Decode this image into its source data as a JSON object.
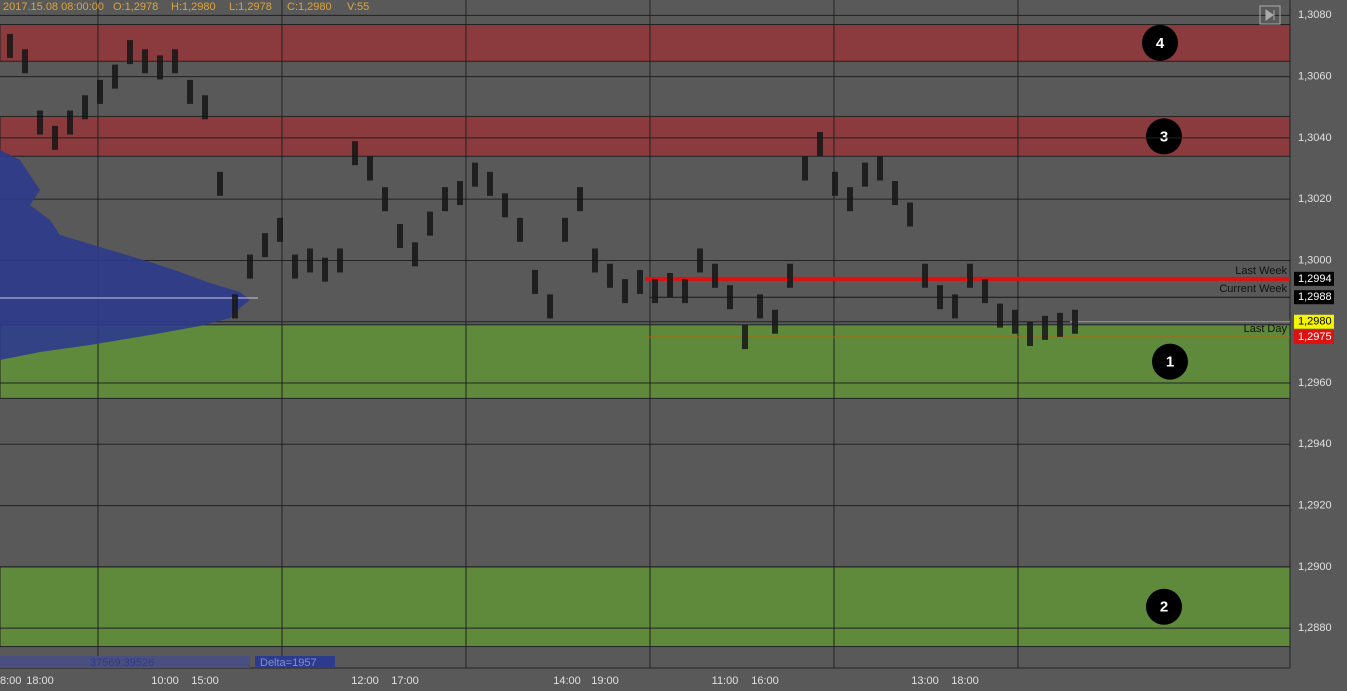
{
  "chart_data": {
    "type": "tpo",
    "header": [
      "2017.15.08 08:00:00",
      "O:1,2978",
      "H:1,2980",
      "L:1,2978",
      "C:1,2980",
      "V:55"
    ],
    "ylim": [
      1.2867,
      1.3085
    ],
    "yticks": [
      {
        "value": 1.308,
        "label": "1,3080"
      },
      {
        "value": 1.306,
        "label": "1,3060"
      },
      {
        "value": 1.304,
        "label": "1,3040"
      },
      {
        "value": 1.302,
        "label": "1,3020"
      },
      {
        "value": 1.3,
        "label": "1,3000"
      },
      {
        "value": 1.298,
        "label": "1,2980"
      },
      {
        "value": 1.296,
        "label": "1,2960"
      },
      {
        "value": 1.294,
        "label": "1,2940"
      },
      {
        "value": 1.292,
        "label": "1,2920"
      },
      {
        "value": 1.29,
        "label": "1,2900"
      },
      {
        "value": 1.288,
        "label": "1,2880"
      }
    ],
    "grid": true,
    "x_labels": [
      "8:00",
      "18:00",
      "10:00",
      "15:00",
      "12:00",
      "17:00",
      "14:00",
      "19:00",
      "11:00",
      "16:00",
      "13:00",
      "18:00"
    ],
    "values": [
      1.307,
      1.3065,
      1.3045,
      1.304,
      1.3045,
      1.305,
      1.3055,
      1.306,
      1.3068,
      1.3065,
      1.3063,
      1.3065,
      1.3055,
      1.305,
      1.3025,
      1.2985,
      1.2998,
      1.3005,
      1.301,
      1.2998,
      1.3,
      1.2997,
      1.3,
      1.3035,
      1.303,
      1.302,
      1.3008,
      1.3002,
      1.3012,
      1.302,
      1.3022,
      1.3028,
      1.3025,
      1.3018,
      1.301,
      1.2993,
      1.2985,
      1.301,
      1.302,
      1.3,
      1.2995,
      1.299,
      1.2993,
      1.299,
      1.2992,
      1.299,
      1.3,
      1.2995,
      1.2988,
      1.2975,
      1.2985,
      1.298,
      1.2995,
      1.303,
      1.3038,
      1.3025,
      1.302,
      1.3028,
      1.303,
      1.3022,
      1.3015,
      1.2995,
      1.2988,
      1.2985,
      1.2995,
      1.299,
      1.2982,
      1.298,
      1.2976,
      1.2978,
      1.2979,
      1.298
    ],
    "color": "#151515",
    "zones": [
      {
        "label": "4",
        "range": [
          1.3065,
          1.3077
        ],
        "color": "#8b3a3d"
      },
      {
        "label": "3",
        "range": [
          1.3034,
          1.3047
        ],
        "color": "#8b3a3d"
      },
      {
        "label": "1",
        "range": [
          1.2955,
          1.2979
        ],
        "color": "#5f8a3c"
      },
      {
        "label": "2",
        "range": [
          1.2874,
          1.29
        ],
        "color": "#5f8a3c"
      }
    ],
    "levels": [
      {
        "label": "Last Week",
        "value": 1.2994,
        "tag": "1,2994",
        "color": "#e01010",
        "tag_color": "#000000"
      },
      {
        "label": "Current Week",
        "value": 1.2988,
        "tag": "1,2988",
        "color": "#151515",
        "tag_color": "#000000"
      },
      {
        "label": "Last Day",
        "value": 1.2975,
        "tag": "1,2975",
        "color": "#d35400",
        "tag_color": "#e01010"
      }
    ],
    "price_tag": {
      "value": 1.298,
      "label": "1,2980"
    },
    "footer": [
      "37569.39526",
      "Delta=1957"
    ]
  }
}
